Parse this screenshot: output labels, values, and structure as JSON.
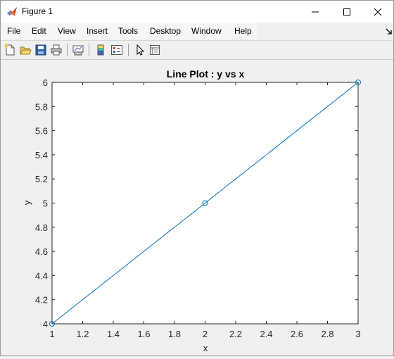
{
  "window": {
    "title": "Figure 1",
    "controls": {
      "minimize": "minimize-icon",
      "maximize": "maximize-icon",
      "close": "close-icon"
    }
  },
  "menubar": {
    "items": [
      {
        "label": "File"
      },
      {
        "label": "Edit"
      },
      {
        "label": "View"
      },
      {
        "label": "Insert"
      },
      {
        "label": "Tools"
      },
      {
        "label": "Desktop"
      },
      {
        "label": "Window"
      },
      {
        "label": "Help"
      }
    ]
  },
  "toolbar": {
    "buttons": [
      "new-figure-icon",
      "open-file-icon",
      "save-icon",
      "print-icon",
      "link-plot-icon",
      "colorbar-icon",
      "legend-icon",
      "edit-plot-icon",
      "property-inspector-icon"
    ]
  },
  "colors": {
    "line": "#0072bd",
    "axes_bg": "#ffffff",
    "figure_bg": "#f0f0f0"
  },
  "chart_data": {
    "type": "line",
    "title": "Line Plot : y vs x",
    "xlabel": "x",
    "ylabel": "y",
    "xlim": [
      1,
      3
    ],
    "ylim": [
      4,
      6
    ],
    "xticks": [
      "1",
      "1.2",
      "1.4",
      "1.6",
      "1.8",
      "2",
      "2.2",
      "2.4",
      "2.6",
      "2.8",
      "3"
    ],
    "yticks": [
      "4",
      "4.2",
      "4.4",
      "4.6",
      "4.8",
      "5",
      "5.2",
      "5.4",
      "5.6",
      "5.8",
      "6"
    ],
    "grid": false,
    "marker": "circle",
    "series": [
      {
        "x": [
          1,
          2,
          3
        ],
        "y": [
          4,
          5,
          6
        ]
      }
    ]
  }
}
